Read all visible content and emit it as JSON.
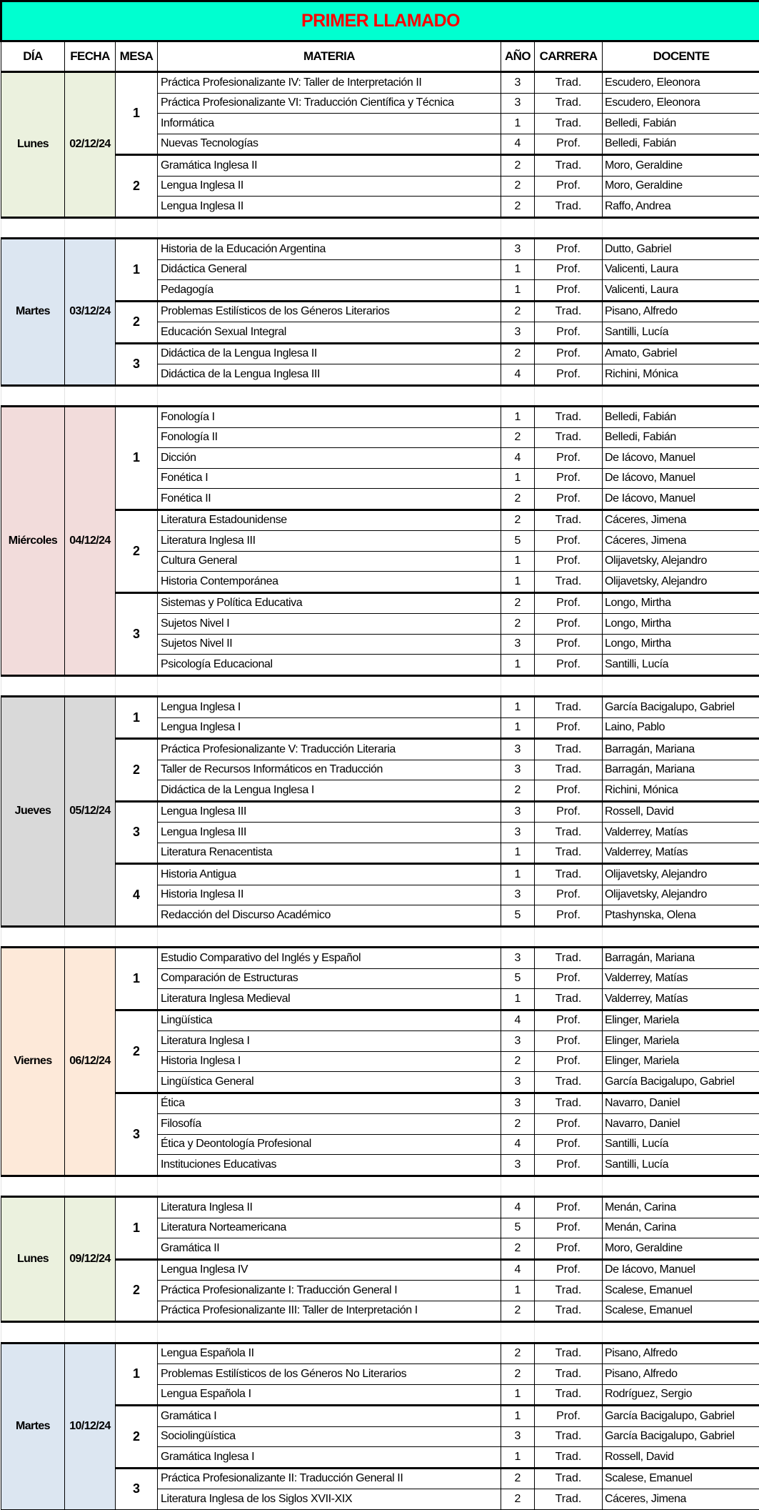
{
  "title": "PRIMER LLAMADO",
  "headers": [
    "DÍA",
    "FECHA",
    "MESA",
    "MATERIA",
    "AÑO",
    "CARRERA",
    "DOCENTE"
  ],
  "days": [
    {
      "day": "Lunes",
      "date": "02/12/24",
      "color": "#ebf1de",
      "mesas": [
        {
          "mesa": "1",
          "rows": [
            [
              "Práctica Profesionalizante IV: Taller de Interpretación II",
              "3",
              "Trad.",
              "Escudero, Eleonora"
            ],
            [
              "Práctica Profesionalizante VI: Traducción Científica y Técnica",
              "3",
              "Trad.",
              "Escudero, Eleonora"
            ],
            [
              "Informática",
              "1",
              "Trad.",
              "Belledi, Fabián"
            ],
            [
              "Nuevas Tecnologías",
              "4",
              "Prof.",
              "Belledi, Fabián"
            ]
          ]
        },
        {
          "mesa": "2",
          "rows": [
            [
              "Gramática Inglesa II",
              "2",
              "Trad.",
              "Moro, Geraldine"
            ],
            [
              "Lengua Inglesa II",
              "2",
              "Prof.",
              "Moro, Geraldine"
            ],
            [
              "Lengua Inglesa II",
              "2",
              "Trad.",
              "Raffo, Andrea"
            ]
          ]
        }
      ]
    },
    {
      "day": "Martes",
      "date": "03/12/24",
      "color": "#dce6f1",
      "mesas": [
        {
          "mesa": "1",
          "rows": [
            [
              "Historia de la Educación Argentina",
              "3",
              "Prof.",
              "Dutto, Gabriel"
            ],
            [
              "Didáctica General",
              "1",
              "Prof.",
              "Valicenti, Laura"
            ],
            [
              "Pedagogía",
              "1",
              "Prof.",
              "Valicenti, Laura"
            ]
          ]
        },
        {
          "mesa": "2",
          "rows": [
            [
              "Problemas Estilísticos de los Géneros Literarios",
              "2",
              "Trad.",
              "Pisano, Alfredo"
            ],
            [
              "Educación Sexual Integral",
              "3",
              "Prof.",
              "Santilli, Lucía"
            ]
          ]
        },
        {
          "mesa": "3",
          "rows": [
            [
              "Didáctica de la Lengua Inglesa II",
              "2",
              "Prof.",
              "Amato, Gabriel"
            ],
            [
              "Didáctica de la Lengua Inglesa III",
              "4",
              "Prof.",
              "Richini, Mónica"
            ]
          ]
        }
      ]
    },
    {
      "day": "Miércoles",
      "date": "04/12/24",
      "color": "#f2dcdb",
      "mesas": [
        {
          "mesa": "1",
          "rows": [
            [
              "Fonología I",
              "1",
              "Trad.",
              "Belledi, Fabián"
            ],
            [
              "Fonología II",
              "2",
              "Trad.",
              "Belledi, Fabián"
            ],
            [
              "Dicción",
              "4",
              "Prof.",
              "De Iácovo, Manuel"
            ],
            [
              "Fonética I",
              "1",
              "Prof.",
              "De Iácovo, Manuel"
            ],
            [
              "Fonética II",
              "2",
              "Prof.",
              "De Iácovo, Manuel"
            ]
          ]
        },
        {
          "mesa": "2",
          "rows": [
            [
              "Literatura Estadounidense",
              "2",
              "Trad.",
              "Cáceres, Jimena"
            ],
            [
              "Literatura Inglesa III",
              "5",
              "Prof.",
              "Cáceres, Jimena"
            ],
            [
              "Cultura General",
              "1",
              "Prof.",
              "Olijavetsky, Alejandro"
            ],
            [
              "Historia Contemporánea",
              "1",
              "Trad.",
              "Olijavetsky, Alejandro"
            ]
          ]
        },
        {
          "mesa": "3",
          "rows": [
            [
              "Sistemas y Política Educativa",
              "2",
              "Prof.",
              "Longo, Mirtha"
            ],
            [
              "Sujetos Nivel I",
              "2",
              "Prof.",
              "Longo, Mirtha"
            ],
            [
              "Sujetos Nivel II",
              "3",
              "Prof.",
              "Longo, Mirtha"
            ],
            [
              "Psicología Educacional",
              "1",
              "Prof.",
              "Santilli, Lucía"
            ]
          ]
        }
      ]
    },
    {
      "day": "Jueves",
      "date": "05/12/24",
      "color": "#d9d9d9",
      "mesas": [
        {
          "mesa": "1",
          "rows": [
            [
              "Lengua Inglesa I",
              "1",
              "Trad.",
              "García Bacigalupo, Gabriel"
            ],
            [
              "Lengua Inglesa I",
              "1",
              "Prof.",
              "Laino, Pablo"
            ]
          ]
        },
        {
          "mesa": "2",
          "rows": [
            [
              "Práctica Profesionalizante V: Traducción Literaria",
              "3",
              "Trad.",
              "Barragán, Mariana"
            ],
            [
              "Taller de Recursos Informáticos en Traducción",
              "3",
              "Trad.",
              "Barragán, Mariana"
            ],
            [
              "Didáctica de la Lengua Inglesa I",
              "2",
              "Prof.",
              "Richini, Mónica"
            ]
          ]
        },
        {
          "mesa": "3",
          "rows": [
            [
              "Lengua Inglesa III",
              "3",
              "Prof.",
              "Rossell, David"
            ],
            [
              "Lengua Inglesa III",
              "3",
              "Trad.",
              "Valderrey, Matías"
            ],
            [
              "Literatura Renacentista",
              "1",
              "Trad.",
              "Valderrey, Matías"
            ]
          ]
        },
        {
          "mesa": "4",
          "rows": [
            [
              "Historia Antigua",
              "1",
              "Trad.",
              "Olijavetsky, Alejandro"
            ],
            [
              "Historia Inglesa II",
              "3",
              "Prof.",
              "Olijavetsky, Alejandro"
            ],
            [
              "Redacción del Discurso Académico",
              "5",
              "Prof.",
              "Ptashynska, Olena"
            ]
          ]
        }
      ]
    },
    {
      "day": "Viernes",
      "date": "06/12/24",
      "color": "#fde9d9",
      "mesas": [
        {
          "mesa": "1",
          "rows": [
            [
              "Estudio Comparativo del Inglés y Español",
              "3",
              "Trad.",
              "Barragán, Mariana"
            ],
            [
              "Comparación de Estructuras",
              "5",
              "Prof.",
              "Valderrey, Matías"
            ],
            [
              "Literatura Inglesa Medieval",
              "1",
              "Trad.",
              "Valderrey, Matías"
            ]
          ]
        },
        {
          "mesa": "2",
          "rows": [
            [
              "Lingüística",
              "4",
              "Prof.",
              "Elinger, Mariela"
            ],
            [
              "Literatura Inglesa I",
              "3",
              "Prof.",
              "Elinger, Mariela"
            ],
            [
              "Historia Inglesa I",
              "2",
              "Prof.",
              "Elinger, Mariela"
            ],
            [
              "Lingüística General",
              "3",
              "Trad.",
              "García Bacigalupo, Gabriel"
            ]
          ]
        },
        {
          "mesa": "3",
          "rows": [
            [
              "Ética",
              "3",
              "Trad.",
              "Navarro, Daniel"
            ],
            [
              "Filosofía",
              "2",
              "Prof.",
              "Navarro, Daniel"
            ],
            [
              "Ética y Deontología Profesional",
              "4",
              "Prof.",
              "Santilli, Lucía"
            ],
            [
              "Instituciones Educativas",
              "3",
              "Prof.",
              "Santilli, Lucía"
            ]
          ]
        }
      ]
    },
    {
      "day": "Lunes",
      "date": "09/12/24",
      "color": "#ebf1de",
      "mesas": [
        {
          "mesa": "1",
          "rows": [
            [
              "Literatura Inglesa II",
              "4",
              "Prof.",
              "Menán, Carina"
            ],
            [
              "Literatura Norteamericana",
              "5",
              "Prof.",
              "Menán, Carina"
            ],
            [
              "Gramática II",
              "2",
              "Prof.",
              "Moro, Geraldine"
            ]
          ]
        },
        {
          "mesa": "2",
          "rows": [
            [
              "Lengua Inglesa IV",
              "4",
              "Prof.",
              "De Iácovo, Manuel"
            ],
            [
              "Práctica Profesionalizante I: Traducción General I",
              "1",
              "Trad.",
              "Scalese, Emanuel"
            ],
            [
              "Práctica Profesionalizante III: Taller de Interpretación I",
              "2",
              "Trad.",
              "Scalese, Emanuel"
            ]
          ]
        }
      ]
    },
    {
      "day": "Martes",
      "date": "10/12/24",
      "color": "#dce6f1",
      "mesas": [
        {
          "mesa": "1",
          "rows": [
            [
              "Lengua Española II",
              "2",
              "Trad.",
              "Pisano, Alfredo"
            ],
            [
              "Problemas Estilísticos de los Géneros No Literarios",
              "2",
              "Trad.",
              "Pisano, Alfredo"
            ],
            [
              "Lengua Española I",
              "1",
              "Trad.",
              "Rodríguez, Sergio"
            ]
          ]
        },
        {
          "mesa": "2",
          "rows": [
            [
              "Gramática I",
              "1",
              "Prof.",
              "García Bacigalupo, Gabriel"
            ],
            [
              "Sociolingüística",
              "3",
              "Trad.",
              "García Bacigalupo, Gabriel"
            ],
            [
              "Gramática Inglesa I",
              "1",
              "Trad.",
              "Rossell, David"
            ]
          ]
        },
        {
          "mesa": "3",
          "rows": [
            [
              "Práctica Profesionalizante II: Traducción General II",
              "2",
              "Trad.",
              "Scalese, Emanuel"
            ],
            [
              "Literatura Inglesa de los Siglos XVII-XIX",
              "2",
              "Trad.",
              "Cáceres, Jimena"
            ]
          ]
        }
      ]
    }
  ]
}
